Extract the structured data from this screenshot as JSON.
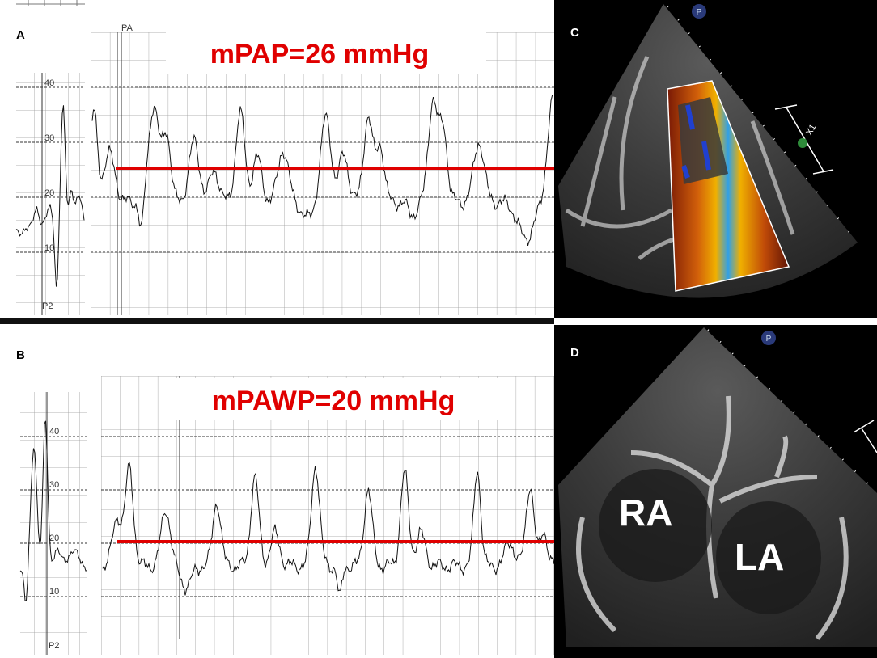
{
  "panels": [
    {
      "label": "A",
      "trace_label": "PA",
      "strip_label": "P2",
      "scale": [
        "40",
        "30",
        "20",
        "10"
      ],
      "annotation": "mPAP=26 mmHg"
    },
    {
      "label": "B",
      "strip_label": "P2",
      "scale": [
        "40",
        "30",
        "20",
        "10"
      ],
      "annotation": "mPAWP=20 mmHg"
    },
    {
      "label": "C",
      "marker": "P",
      "scale_label": "X1"
    },
    {
      "label": "D",
      "marker": "P",
      "chambers": [
        "RA",
        "LA"
      ]
    }
  ]
}
